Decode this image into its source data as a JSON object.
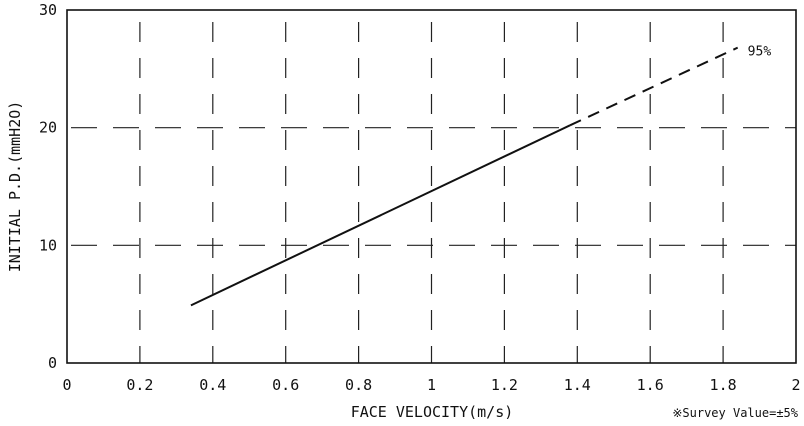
{
  "chart_data": {
    "type": "line",
    "title": "",
    "xlabel": "FACE VELOCITY(m/s)",
    "ylabel": "INITIAL P.D.(mmH2O)",
    "xlim": [
      0,
      2
    ],
    "ylim": [
      0,
      30
    ],
    "x_ticks": [
      0,
      0.2,
      0.4,
      0.6,
      0.8,
      1,
      1.2,
      1.4,
      1.6,
      1.8,
      2
    ],
    "x_tick_labels": [
      "0",
      "0.2",
      "0.4",
      "0.6",
      "0.8",
      "1",
      "1.2",
      "1.4",
      "1.6",
      "1.8",
      "2"
    ],
    "y_ticks": [
      0,
      10,
      20,
      30
    ],
    "y_tick_labels": [
      "0",
      "10",
      "20",
      "30"
    ],
    "grid": true,
    "grid_style": "dashed",
    "series": [
      {
        "name": "95%",
        "solid": {
          "x": [
            0.34,
            1.38
          ],
          "y": [
            4.9,
            20.2
          ]
        },
        "dashed": {
          "x": [
            1.38,
            1.84
          ],
          "y": [
            20.2,
            26.8
          ]
        }
      }
    ],
    "note": "※Survey Value=±5%"
  }
}
